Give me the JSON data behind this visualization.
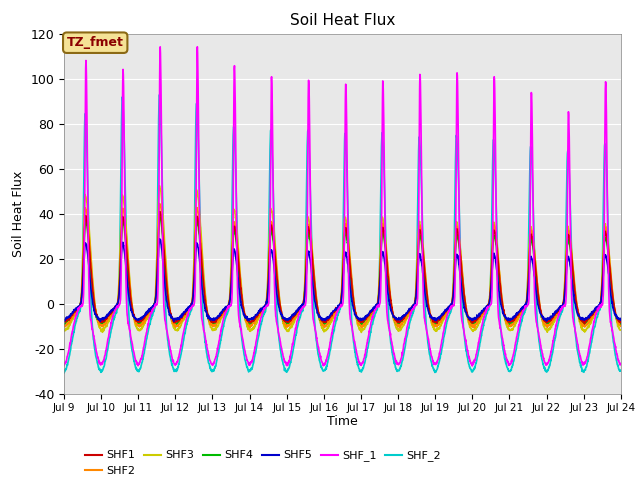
{
  "title": "Soil Heat Flux",
  "ylabel": "Soil Heat Flux",
  "xlabel": "Time",
  "ylim": [
    -40,
    120
  ],
  "background_color": "#e8e8e8",
  "annotation_text": "TZ_fmet",
  "annotation_bg": "#f5e296",
  "annotation_border": "#8B6914",
  "series": {
    "SHF1": {
      "color": "#cc0000",
      "lw": 1.2
    },
    "SHF2": {
      "color": "#ff8800",
      "lw": 1.2
    },
    "SHF3": {
      "color": "#cccc00",
      "lw": 1.2
    },
    "SHF4": {
      "color": "#00bb00",
      "lw": 1.2
    },
    "SHF5": {
      "color": "#0000cc",
      "lw": 1.2
    },
    "SHF_1": {
      "color": "#ff00ff",
      "lw": 1.2
    },
    "SHF_2": {
      "color": "#00cccc",
      "lw": 1.2
    }
  },
  "xtick_labels": [
    "Jul 9",
    "Jul 10",
    "Jul 11",
    "Jul 12",
    "Jul 13",
    "Jul 14",
    "Jul 15",
    "Jul 16",
    "Jul 17",
    "Jul 18",
    "Jul 19",
    "Jul 20",
    "Jul 21",
    "Jul 22",
    "Jul 23",
    "Jul 24"
  ],
  "ytick_labels": [
    -40,
    -20,
    0,
    20,
    40,
    60,
    80,
    100,
    120
  ],
  "n_days": 15,
  "pts_per_day": 144,
  "shf1_peaks": [
    40,
    40,
    42,
    40,
    36,
    36,
    35,
    35,
    35,
    34,
    34,
    34,
    32,
    32,
    33
  ],
  "shf2_peaks": [
    44,
    44,
    46,
    44,
    38,
    38,
    37,
    37,
    37,
    36,
    36,
    36,
    34,
    34,
    35
  ],
  "shf3_peaks": [
    50,
    50,
    54,
    52,
    44,
    44,
    40,
    40,
    40,
    38,
    38,
    38,
    36,
    36,
    37
  ],
  "shf4_peaks": [
    38,
    38,
    40,
    38,
    34,
    34,
    33,
    33,
    33,
    32,
    32,
    32,
    30,
    30,
    31
  ],
  "shf5_peaks": [
    28,
    28,
    30,
    28,
    25,
    25,
    24,
    24,
    24,
    23,
    23,
    23,
    22,
    22,
    23
  ],
  "shf_1_peaks": [
    110,
    106,
    116,
    116,
    108,
    103,
    102,
    100,
    101,
    104,
    105,
    103,
    96,
    87,
    101
  ],
  "shf_2_peaks": [
    87,
    95,
    96,
    92,
    81,
    80,
    80,
    78,
    79,
    77,
    78,
    76,
    73,
    71,
    74
  ]
}
